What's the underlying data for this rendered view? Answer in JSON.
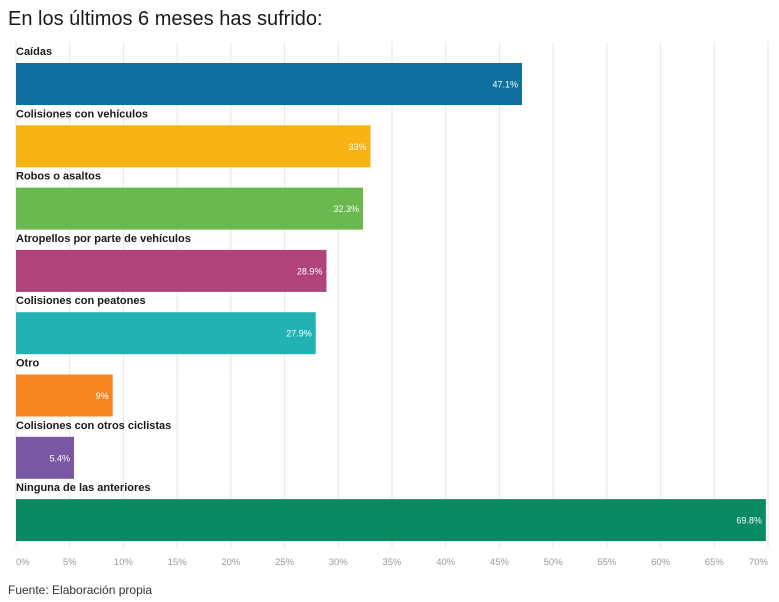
{
  "title": "En los últimos 6 meses has sufrido:",
  "source": "Fuente: Elaboración propia",
  "chart_data": {
    "type": "bar",
    "orientation": "horizontal",
    "categories": [
      "Caídas",
      "Colisiones con vehículos",
      "Robos o asaltos",
      "Atropellos por parte de vehículos",
      "Colisiones con peatones",
      "Otro",
      "Colisiones con otros ciclistas",
      "Ninguna de las anteriores"
    ],
    "values": [
      47.1,
      33,
      32.3,
      28.9,
      27.9,
      9,
      5.4,
      69.8
    ],
    "value_labels": [
      "47.1%",
      "33%",
      "32.3%",
      "28.9%",
      "27.9%",
      "9%",
      "5.4%",
      "69.8%"
    ],
    "colors": [
      "#0e6f9e",
      "#f8b415",
      "#69b94e",
      "#b0437b",
      "#22b2b4",
      "#f6861f",
      "#7a57a2",
      "#0a8a63"
    ],
    "xlim": [
      0,
      70
    ],
    "xticks": [
      "0%",
      "5%",
      "10%",
      "15%",
      "20%",
      "25%",
      "30%",
      "35%",
      "40%",
      "45%",
      "50%",
      "55%",
      "60%",
      "65%",
      "70%"
    ],
    "grid": true,
    "legend": false
  }
}
